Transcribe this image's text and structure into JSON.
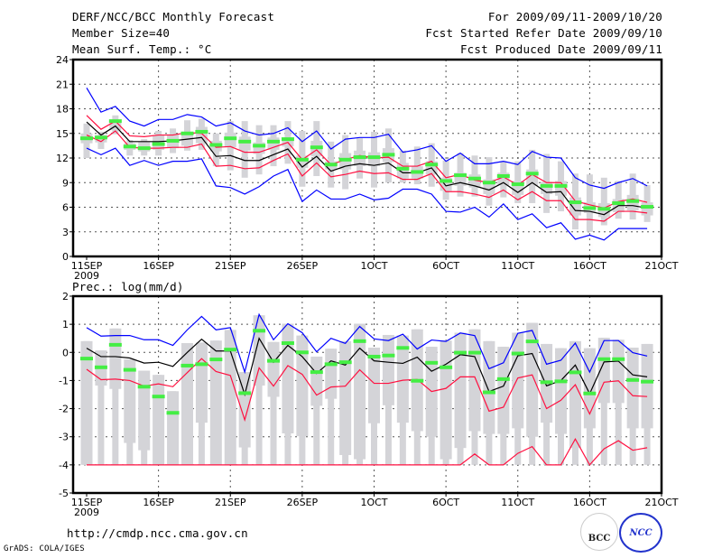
{
  "header": {
    "title": "DERF/NCC/BCC Monthly Forecast",
    "member_size": "Member Size=40",
    "variable": "Mean Surf. Temp.: °C",
    "period": "For 2009/09/11-2009/10/20",
    "started": "Fcst Started Refer Date 2009/09/10",
    "produced": "Fcst Produced Date 2009/09/11"
  },
  "footer": {
    "url": "http://cmdp.ncc.cma.gov.cn",
    "credit": "GrADS: COLA/IGES",
    "logo_bcc": "BCC",
    "logo_ncc": "NCC"
  },
  "colors": {
    "mean": "#000000",
    "spread": "#ff1040",
    "extreme": "#0000ff",
    "obs": "#44ee44",
    "box": "#d4d4d8",
    "grid": "#555555"
  },
  "chart_data": [
    {
      "type": "line",
      "title": "Mean Surf. Temp.: °C",
      "ylabel": "°C",
      "ylim": [
        0,
        24
      ],
      "yticks": [
        "0",
        "3",
        "6",
        "9",
        "12",
        "15",
        "18",
        "21",
        "24"
      ],
      "xticks": [
        "11SEP",
        "16SEP",
        "21SEP",
        "26SEP",
        "1OCT",
        "6OCT",
        "11OCT",
        "16OCT",
        "21OCT"
      ],
      "xsub": "2009",
      "days": 40,
      "grid": true,
      "series": [
        {
          "name": "max",
          "color": "extreme",
          "values": [
            20.55,
            17.6,
            18.3,
            16.5,
            15.9,
            16.7,
            16.7,
            17.3,
            17.0,
            15.9,
            16.3,
            15.3,
            14.8,
            15.0,
            15.7,
            14.0,
            15.3,
            13.1,
            14.3,
            14.5,
            14.5,
            14.9,
            12.7,
            13.0,
            13.5,
            11.6,
            12.6,
            11.3,
            11.3,
            11.6,
            11.2,
            12.8,
            12.1,
            12.0,
            9.6,
            8.7,
            8.3,
            9.0,
            9.5,
            8.6
          ]
        },
        {
          "name": "upper",
          "color": "spread",
          "values": [
            17.2,
            15.5,
            16.5,
            14.7,
            14.6,
            14.8,
            14.8,
            15.1,
            15.0,
            13.3,
            13.4,
            12.7,
            12.7,
            13.3,
            13.9,
            11.8,
            13.0,
            11.2,
            11.8,
            12.3,
            12.0,
            12.1,
            11.0,
            11.0,
            11.6,
            9.6,
            10.0,
            9.3,
            9.0,
            9.7,
            8.7,
            10.0,
            9.0,
            9.0,
            6.75,
            6.3,
            5.9,
            6.7,
            7.0,
            6.6
          ]
        },
        {
          "name": "mean",
          "color": "mean",
          "values": [
            16.4,
            14.8,
            15.9,
            14.0,
            14.0,
            14.0,
            14.1,
            14.3,
            14.5,
            12.2,
            12.3,
            11.7,
            11.7,
            12.4,
            13.1,
            10.9,
            12.2,
            10.4,
            11.0,
            11.3,
            11.1,
            11.4,
            10.2,
            10.2,
            10.8,
            8.6,
            9.0,
            8.6,
            8.1,
            9.0,
            7.8,
            9.0,
            7.8,
            7.9,
            5.6,
            5.5,
            5.1,
            6.2,
            6.2,
            5.9
          ]
        },
        {
          "name": "lower",
          "color": "spread",
          "values": [
            14.8,
            14.0,
            15.3,
            13.3,
            13.2,
            13.2,
            13.3,
            13.3,
            13.7,
            11.0,
            11.1,
            10.7,
            10.8,
            11.7,
            12.5,
            9.8,
            11.4,
            9.7,
            10.0,
            10.4,
            10.1,
            10.2,
            9.4,
            9.4,
            10.1,
            7.9,
            7.9,
            7.6,
            7.2,
            8.1,
            6.9,
            7.9,
            6.8,
            6.8,
            4.5,
            4.5,
            4.3,
            5.5,
            5.5,
            5.3
          ]
        },
        {
          "name": "min",
          "color": "extreme",
          "values": [
            13.2,
            12.4,
            13.2,
            11.1,
            11.7,
            11.1,
            11.6,
            11.6,
            11.9,
            8.6,
            8.4,
            7.6,
            8.5,
            9.8,
            10.6,
            6.7,
            8.1,
            7.0,
            7.0,
            7.6,
            6.9,
            7.1,
            8.2,
            8.2,
            7.6,
            5.5,
            5.4,
            6.0,
            4.8,
            6.4,
            4.5,
            5.2,
            3.5,
            4.1,
            2.1,
            2.6,
            2.0,
            3.4,
            3.4,
            3.4
          ]
        }
      ],
      "observed": [
        14.4,
        14.5,
        16.5,
        13.4,
        13.2,
        13.7,
        14.1,
        15.0,
        15.2,
        13.6,
        14.4,
        14.0,
        13.5,
        14.0,
        14.3,
        11.8,
        13.3,
        11.2,
        11.8,
        12.1,
        12.1,
        12.4,
        10.7,
        10.3,
        11.2,
        9.2,
        9.9,
        9.5,
        9.0,
        9.8,
        8.8,
        10.1,
        8.6,
        8.6,
        6.6,
        5.9,
        5.8,
        6.5,
        6.75,
        6.05
      ],
      "box": {
        "whisker_high": [
          16.2,
          15.2,
          17.2,
          14.2,
          14.3,
          15.3,
          15.6,
          16.6,
          16.8,
          15.0,
          16.5,
          16.5,
          16.0,
          16.0,
          16.5,
          15.3,
          16.5,
          14.0,
          14.8,
          14.4,
          15.2,
          15.6,
          12.9,
          13.4,
          13.8,
          11.7,
          12.6,
          12.3,
          12.1,
          11.6,
          11.6,
          13.0,
          12.5,
          11.6,
          10.1,
          10.0,
          9.6,
          9.2,
          10.1,
          8.7
        ],
        "box_high": [
          15.0,
          14.8,
          16.6,
          13.8,
          14.0,
          14.8,
          14.9,
          15.2,
          15.8,
          14.1,
          15.1,
          14.6,
          13.9,
          14.5,
          14.5,
          12.3,
          14.1,
          11.6,
          12.6,
          12.9,
          12.7,
          13.2,
          11.4,
          11.0,
          11.6,
          9.6,
          10.2,
          10.0,
          9.4,
          10.2,
          9.2,
          10.6,
          9.1,
          9.2,
          7.2,
          6.6,
          6.5,
          7.0,
          7.5,
          6.6
        ],
        "box_low": [
          13.8,
          13.9,
          15.4,
          13.0,
          12.8,
          13.0,
          13.2,
          13.5,
          13.8,
          12.8,
          13.3,
          12.9,
          12.5,
          13.0,
          13.4,
          10.8,
          12.2,
          10.6,
          10.6,
          11.0,
          11.0,
          11.5,
          9.5,
          9.5,
          10.0,
          8.0,
          8.6,
          8.4,
          7.6,
          8.7,
          7.5,
          8.6,
          7.6,
          7.4,
          5.0,
          5.3,
          4.8,
          5.4,
          5.6,
          5.0
        ],
        "whisker_low": [
          12.0,
          13.1,
          14.9,
          12.3,
          12.3,
          12.3,
          12.6,
          12.9,
          13.0,
          11.0,
          10.5,
          9.6,
          10.0,
          11.0,
          11.3,
          8.5,
          9.8,
          8.4,
          8.2,
          9.5,
          8.4,
          9.0,
          9.0,
          8.8,
          8.5,
          6.9,
          7.3,
          7.3,
          6.2,
          7.2,
          6.5,
          6.5,
          5.3,
          5.5,
          3.3,
          3.0,
          3.8,
          4.6,
          4.5,
          4.2
        ]
      }
    },
    {
      "type": "line",
      "title": "Prec.: log(mm/d)",
      "ylabel": "log(mm/d)",
      "ylim": [
        -5,
        2
      ],
      "yticks": [
        "-5",
        "-4",
        "-3",
        "-2",
        "-1",
        "0",
        "1",
        "2"
      ],
      "xticks": [
        "11SEP",
        "16SEP",
        "21SEP",
        "26SEP",
        "1OCT",
        "6OCT",
        "11OCT",
        "16OCT",
        "21OCT"
      ],
      "xsub": "2009",
      "days": 40,
      "grid": true,
      "series": [
        {
          "name": "max",
          "color": "extreme",
          "values": [
            0.88,
            0.58,
            0.6,
            0.6,
            0.45,
            0.45,
            0.25,
            0.8,
            1.28,
            0.8,
            0.88,
            -0.7,
            1.35,
            0.45,
            1.02,
            0.7,
            0.02,
            0.5,
            0.32,
            0.92,
            0.48,
            0.42,
            0.65,
            0.12,
            0.44,
            0.39,
            0.69,
            0.6,
            -0.58,
            -0.37,
            0.68,
            0.78,
            -0.42,
            -0.28,
            0.33,
            -0.7,
            0.42,
            0.42,
            -0.01,
            -0.13
          ]
        },
        {
          "name": "mean",
          "color": "mean",
          "values": [
            0.15,
            -0.15,
            -0.15,
            -0.2,
            -0.38,
            -0.35,
            -0.5,
            0.0,
            0.47,
            0.05,
            0.05,
            -1.5,
            0.5,
            -0.35,
            0.25,
            -0.15,
            -0.75,
            -0.3,
            -0.45,
            0.15,
            -0.3,
            -0.35,
            -0.39,
            -0.17,
            -0.67,
            -0.42,
            -0.08,
            -0.15,
            -1.39,
            -1.2,
            -0.12,
            -0.04,
            -1.19,
            -1.0,
            -0.45,
            -1.47,
            -0.34,
            -0.31,
            -0.8,
            -0.87
          ]
        },
        {
          "name": "upper",
          "color": "spread",
          "values": [
            -0.6,
            -0.97,
            -0.95,
            -1.0,
            -1.2,
            -1.12,
            -1.22,
            -0.72,
            -0.22,
            -0.68,
            -0.82,
            -2.4,
            -0.55,
            -1.2,
            -0.47,
            -0.78,
            -1.52,
            -1.23,
            -1.2,
            -0.62,
            -1.1,
            -1.1,
            -0.99,
            -0.96,
            -1.39,
            -1.28,
            -0.87,
            -0.87,
            -2.09,
            -1.95,
            -0.91,
            -0.8,
            -2.0,
            -1.7,
            -1.15,
            -2.19,
            -1.06,
            -1.01,
            -1.54,
            -1.57
          ]
        },
        {
          "name": "lower",
          "color": "spread",
          "values": [
            -4,
            -4,
            -4,
            -4,
            -4,
            -4,
            -4,
            -4,
            -4,
            -4,
            -4,
            -4,
            -4,
            -4,
            -4,
            -4,
            -4,
            -4,
            -4,
            -4,
            -4,
            -4,
            -4,
            -4,
            -4,
            -4,
            -4,
            -3.61,
            -4,
            -4,
            -3.59,
            -3.35,
            -4,
            -4,
            -3.08,
            -4,
            -3.43,
            -3.14,
            -3.48,
            -3.39
          ]
        }
      ],
      "observed": [
        -0.22,
        -0.53,
        0.27,
        -0.62,
        -1.22,
        -1.57,
        -2.15,
        -0.47,
        -0.42,
        -0.25,
        0.1,
        -1.45,
        0.77,
        -0.3,
        0.33,
        0.0,
        -0.7,
        -0.42,
        -0.35,
        0.4,
        -0.15,
        -0.11,
        0.16,
        -1.01,
        -0.37,
        -0.53,
        -0.01,
        -0.01,
        -1.42,
        -0.95,
        -0.04,
        0.39,
        -1.06,
        -1.03,
        -0.71,
        -1.46,
        -0.24,
        -0.24,
        -0.98,
        -1.04
      ],
      "box": {
        "whisker_high": [
          0.4,
          0.07,
          0.85,
          -0.25,
          -0.65,
          -0.8,
          -1.38,
          0.33,
          0.35,
          0.42,
          0.8,
          -0.7,
          1.32,
          0.37,
          1.02,
          0.6,
          -0.15,
          0.13,
          0.4,
          1.02,
          0.17,
          0.62,
          0.6,
          0.82,
          0.2,
          0.42,
          0.7,
          0.82,
          0.4,
          0.2,
          0.7,
          1.05,
          0.3,
          0.15,
          0.4,
          0.15,
          0.52,
          0.45,
          0.17,
          0.3
        ],
        "box_high": [
          0.4,
          0.07,
          0.85,
          -0.25,
          -0.65,
          -0.8,
          -1.38,
          0.33,
          0.35,
          0.42,
          0.8,
          -0.7,
          1.32,
          0.37,
          1.02,
          0.6,
          -0.15,
          0.13,
          0.4,
          1.02,
          0.17,
          0.62,
          0.6,
          0.82,
          0.2,
          0.42,
          0.7,
          0.82,
          0.4,
          0.2,
          0.7,
          1.05,
          0.3,
          0.15,
          0.4,
          0.15,
          0.52,
          0.45,
          0.17,
          0.3
        ],
        "box_low": [
          -4,
          -1.18,
          -1.3,
          -3.22,
          -3.48,
          -4,
          -4,
          -4,
          -2.5,
          -4,
          -4,
          -3.38,
          -1.18,
          -1.58,
          -2.88,
          -2.98,
          -1.9,
          -1.65,
          -3.65,
          -3.8,
          -2.52,
          -1.88,
          -2.5,
          -2.8,
          -3.0,
          -3.8,
          -3.4,
          -2.8,
          -2.9,
          -2.9,
          -2.7,
          -3.0,
          -2.5,
          -2.9,
          -3.4,
          -2.7,
          -1.8,
          -1.8,
          -2.7,
          -2.7
        ],
        "whisker_low": [
          -4,
          -4,
          -4,
          -4,
          -4,
          -4,
          -4,
          -4,
          -4,
          -4,
          -4,
          -4,
          -4,
          -4,
          -4,
          -4,
          -4,
          -4,
          -4,
          -4,
          -4,
          -4,
          -4,
          -4,
          -4,
          -4,
          -4,
          -4,
          -4,
          -4,
          -4,
          -4,
          -4,
          -4,
          -4,
          -4,
          -4,
          -4,
          -4,
          -4
        ]
      }
    }
  ]
}
